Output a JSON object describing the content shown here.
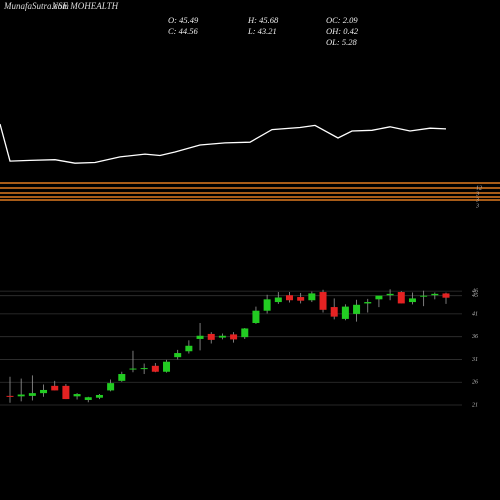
{
  "header": {
    "site": "MunafaSutra.com",
    "symbol": "NSE MOHEALTH"
  },
  "ohlc_info": [
    [
      "O: 45.49",
      "C: 44.56"
    ],
    [
      "H: 45.68",
      "L: 43.21"
    ],
    [
      "OC: 2.09",
      "OH: 0.42",
      "OL: 5.28"
    ]
  ],
  "level_labels": [
    "12",
    "3",
    "3",
    "3"
  ],
  "chart_data": [
    {
      "type": "line",
      "color": "#ffffff",
      "ylim": [
        0,
        100
      ],
      "x": [
        0,
        10,
        30,
        55,
        75,
        95,
        120,
        145,
        160,
        175,
        200,
        225,
        250,
        272,
        300,
        315,
        338,
        352,
        372,
        390,
        410,
        430,
        446
      ],
      "xlim": [
        0,
        446
      ],
      "values": [
        80,
        27,
        28,
        29,
        24,
        25,
        33,
        37,
        35,
        40,
        50,
        53,
        54,
        72,
        75,
        78,
        60,
        70,
        71,
        76,
        70,
        74,
        73
      ]
    },
    {
      "type": "candlestick",
      "up_color": "#22cc22",
      "down_color": "#e52222",
      "grid": true,
      "ylim": [
        19.9,
        50.2
      ],
      "yticks": [
        21,
        26,
        31,
        36,
        41,
        45,
        46
      ],
      "open": [
        23.0,
        22.9,
        23.0,
        23.6,
        25.2,
        25.2,
        22.9,
        22.1,
        22.6,
        24.2,
        26.3,
        28.8,
        29.0,
        29.6,
        28.3,
        31.5,
        32.8,
        35.5,
        36.6,
        35.8,
        36.5,
        35.9,
        39.0,
        41.7,
        43.6,
        45.1,
        44.7,
        44.0,
        45.8,
        42.5,
        39.9,
        41.0,
        43.3,
        44.2,
        45.1,
        45.8,
        43.6,
        44.8,
        45.1,
        45.49
      ],
      "high": [
        27.2,
        26.8,
        27.5,
        25.5,
        26.3,
        25.6,
        23.6,
        22.8,
        23.4,
        26.6,
        28.3,
        32.9,
        30.1,
        30.2,
        30.9,
        33.1,
        35.2,
        39.0,
        37.0,
        36.7,
        37.0,
        37.9,
        42.6,
        45.2,
        45.8,
        45.8,
        45.6,
        45.9,
        46.3,
        44.4,
        43.1,
        44.1,
        44.3,
        44.7,
        46.4,
        46.0,
        45.7,
        46.1,
        45.7,
        45.68
      ],
      "low": [
        21.5,
        21.8,
        22.0,
        22.8,
        24.2,
        22.3,
        22.2,
        21.6,
        22.3,
        24.0,
        26.1,
        28.2,
        27.8,
        28.2,
        28.1,
        31.0,
        32.3,
        33.0,
        34.5,
        35.4,
        34.7,
        35.5,
        38.8,
        41.1,
        43.2,
        43.5,
        43.3,
        43.6,
        41.3,
        39.8,
        39.6,
        39.3,
        41.3,
        42.5,
        44.0,
        43.3,
        43.1,
        42.7,
        44.2,
        43.21
      ],
      "close": [
        22.9,
        23.3,
        23.6,
        24.3,
        24.2,
        22.3,
        23.4,
        22.7,
        23.2,
        25.8,
        27.8,
        29.0,
        29.1,
        28.3,
        30.5,
        32.4,
        34.0,
        36.2,
        35.3,
        36.2,
        35.4,
        37.8,
        41.7,
        44.2,
        44.6,
        44.0,
        43.9,
        45.5,
        41.9,
        40.4,
        42.6,
        43.0,
        43.6,
        45.0,
        45.4,
        43.3,
        44.4,
        45.0,
        45.4,
        44.56
      ]
    }
  ]
}
